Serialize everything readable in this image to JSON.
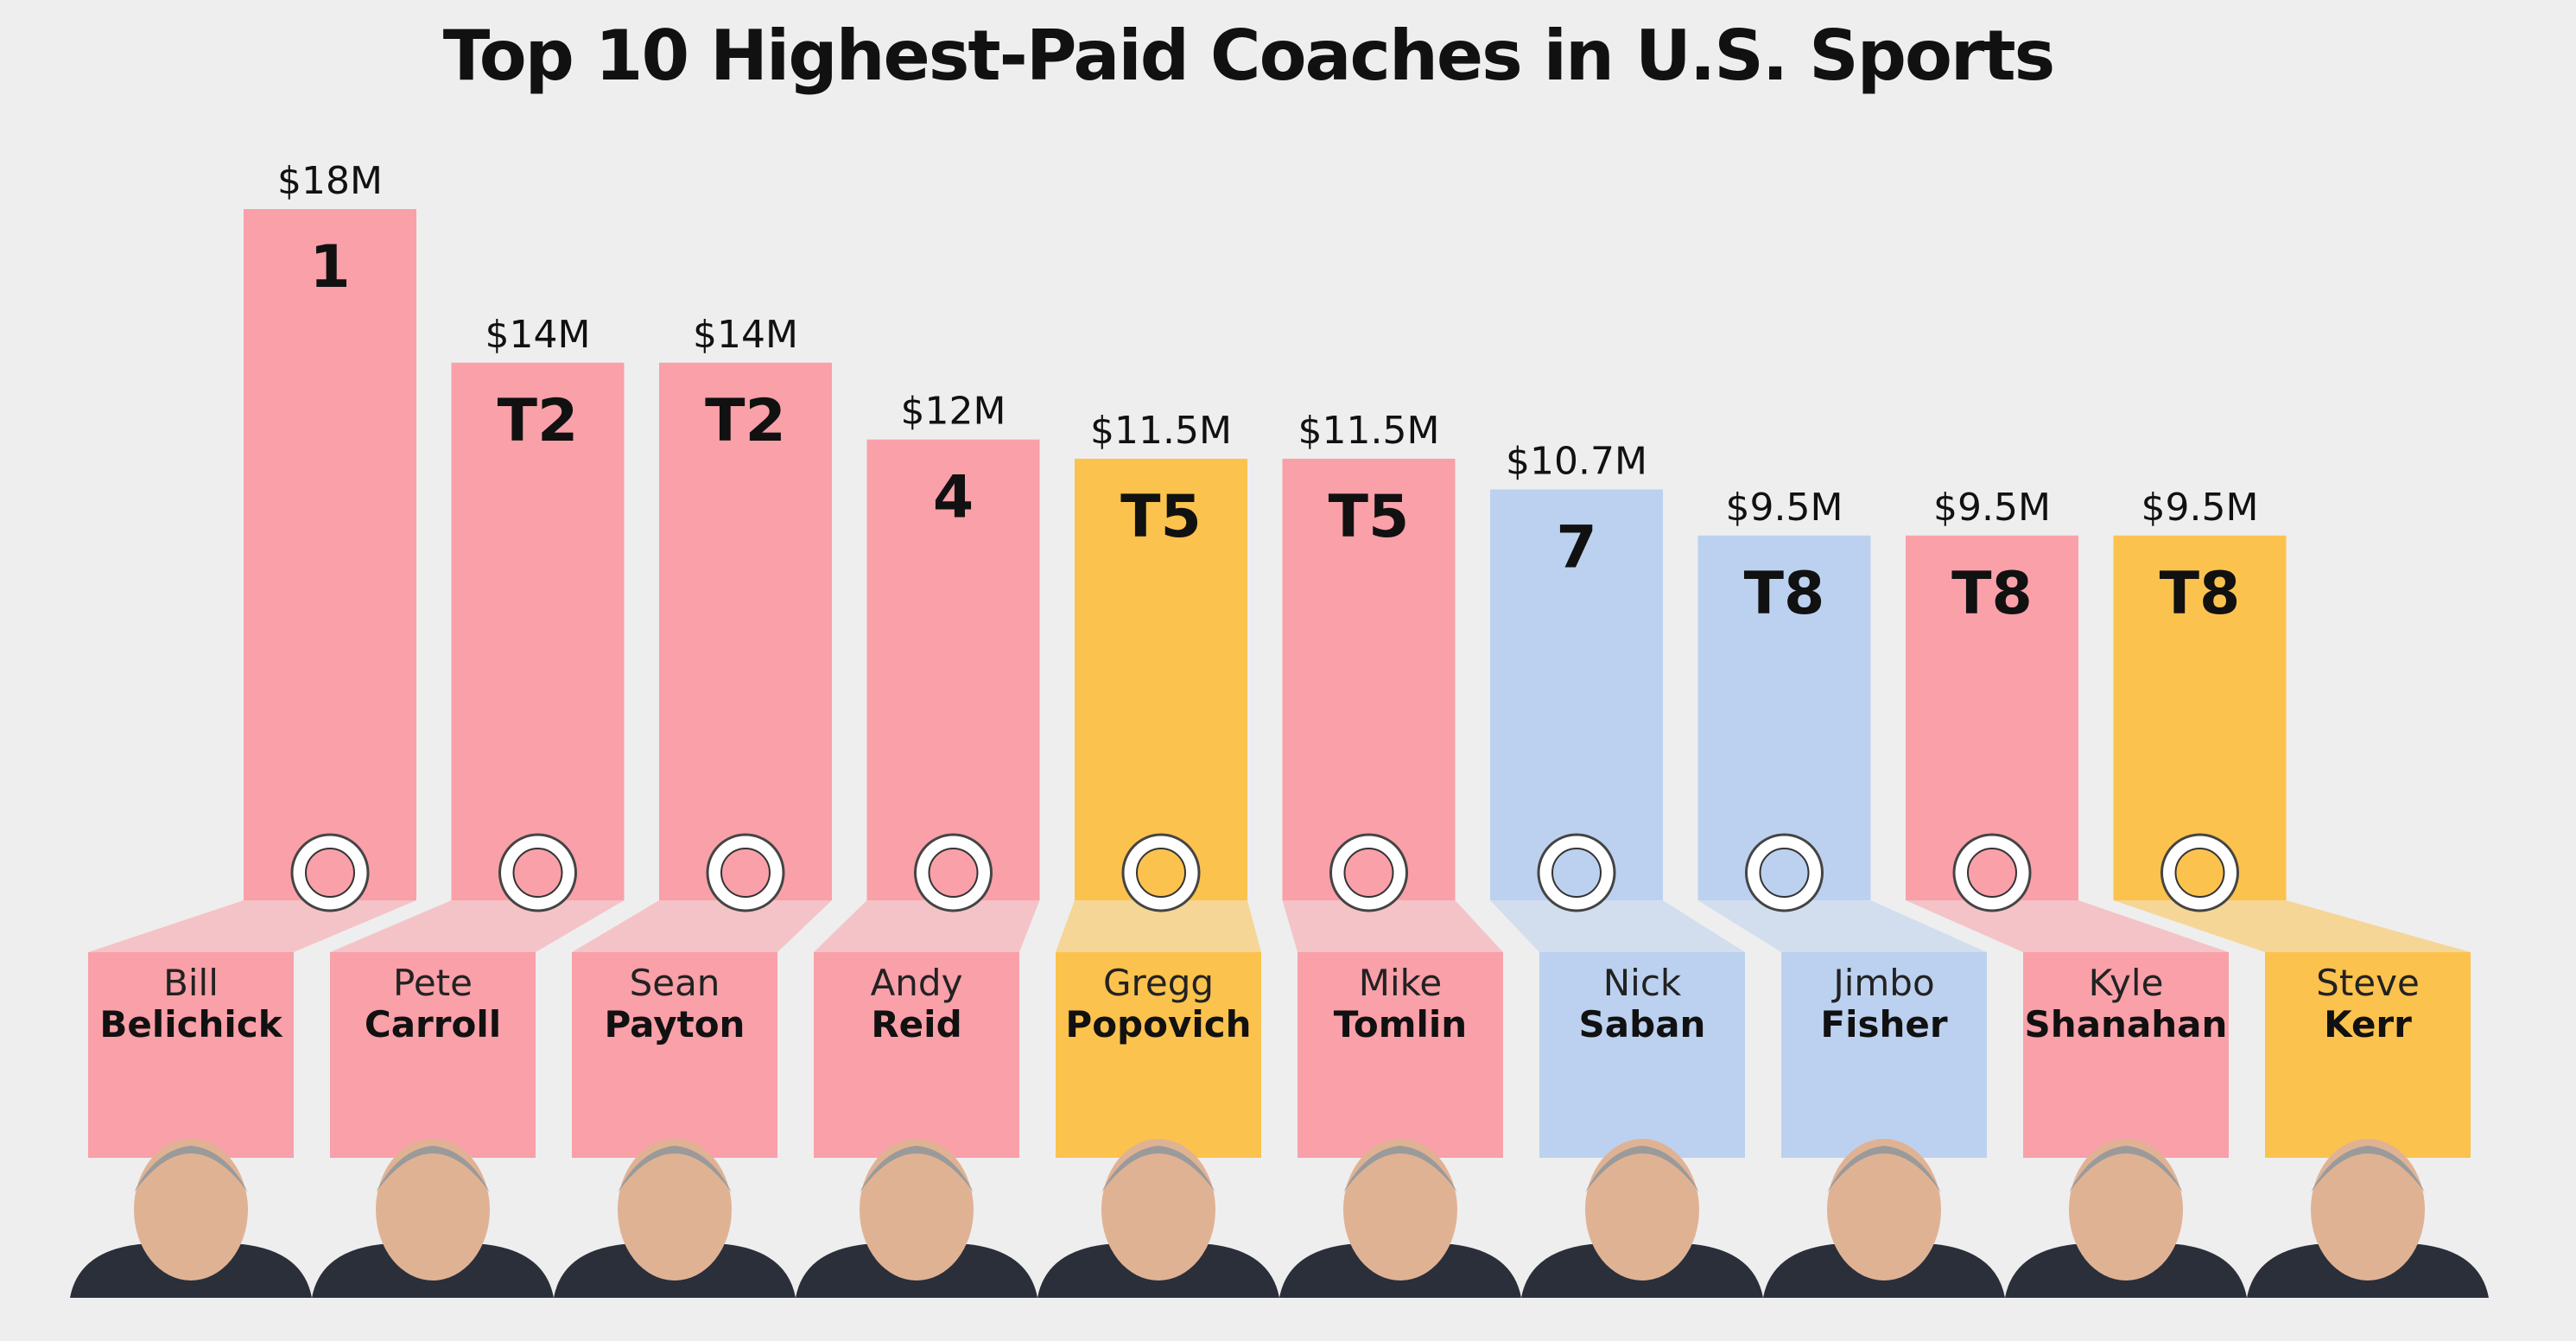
{
  "colors": {
    "nfl": "#f9a0a9",
    "nba": "#fcc24e",
    "ncaa": "#bcd1ef",
    "background": "#eeeeee"
  },
  "chart_data": {
    "type": "bar",
    "title": "Top 10 Highest-Paid Coaches in U.S. Sports",
    "ylabel": "",
    "xlabel": "",
    "ylim": [
      0,
      18
    ],
    "grid": false,
    "categories": [
      "Bill Belichick",
      "Pete Carroll",
      "Sean Payton",
      "Andy Reid",
      "Gregg Popovich",
      "Mike Tomlin",
      "Nick Saban",
      "Jimbo Fisher",
      "Kyle Shanahan",
      "Steve Kerr"
    ],
    "values": [
      18,
      14,
      14,
      12,
      11.5,
      11.5,
      10.7,
      9.5,
      9.5,
      9.5
    ],
    "value_labels": [
      "$18M",
      "$14M",
      "$14M",
      "$12M",
      "$11.5M",
      "$11.5M",
      "$10.7M",
      "$9.5M",
      "$9.5M",
      "$9.5M"
    ],
    "ranks": [
      "1",
      "T2",
      "T2",
      "4",
      "T5",
      "T5",
      "7",
      "T8",
      "T8",
      "T8"
    ],
    "coaches": [
      {
        "first": "Bill",
        "last": "Belichick",
        "league": "nfl",
        "logo": "patriots-logo"
      },
      {
        "first": "Pete",
        "last": "Carroll",
        "league": "nfl",
        "logo": "seahawks-logo"
      },
      {
        "first": "Sean",
        "last": "Payton",
        "league": "nfl",
        "logo": "saints-logo"
      },
      {
        "first": "Andy",
        "last": "Reid",
        "league": "nfl",
        "logo": "chiefs-logo"
      },
      {
        "first": "Gregg",
        "last": "Popovich",
        "league": "nba",
        "logo": "spurs-logo"
      },
      {
        "first": "Mike",
        "last": "Tomlin",
        "league": "nfl",
        "logo": "steelers-logo"
      },
      {
        "first": "Nick",
        "last": "Saban",
        "league": "ncaa",
        "logo": "alabama-logo"
      },
      {
        "first": "Jimbo",
        "last": "Fisher",
        "league": "ncaa",
        "logo": "texas-am-logo"
      },
      {
        "first": "Kyle",
        "last": "Shanahan",
        "league": "nfl",
        "logo": "49ers-logo"
      },
      {
        "first": "Steve",
        "last": "Kerr",
        "league": "nba",
        "logo": "warriors-logo"
      }
    ]
  }
}
